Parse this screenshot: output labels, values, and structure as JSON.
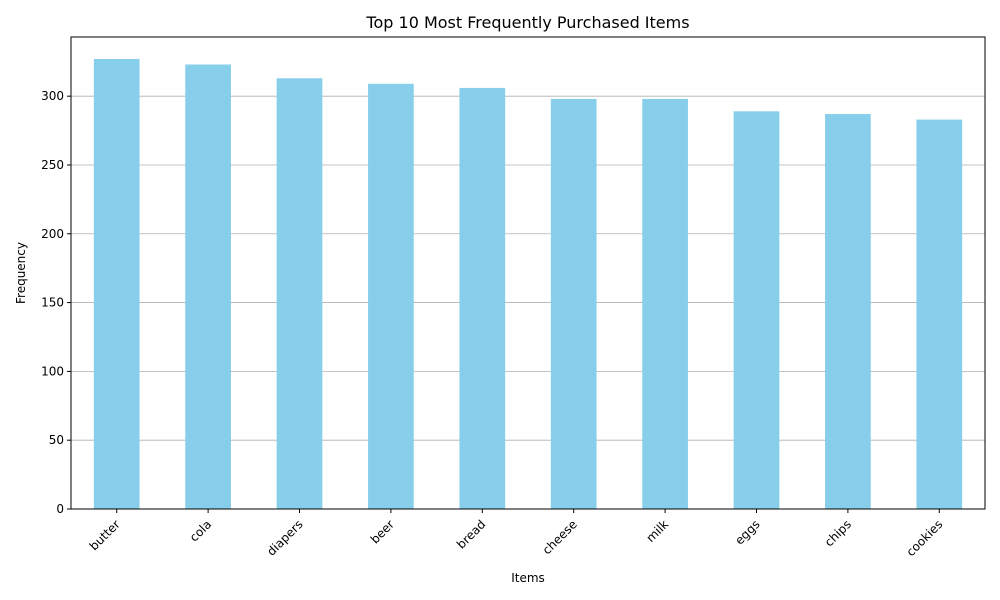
{
  "chart_data": {
    "type": "bar",
    "title": "Top 10 Most Frequently Purchased Items",
    "xlabel": "Items",
    "ylabel": "Frequency",
    "categories": [
      "butter",
      "cola",
      "diapers",
      "beer",
      "bread",
      "cheese",
      "milk",
      "eggs",
      "chips",
      "cookies"
    ],
    "values": [
      327,
      323,
      313,
      309,
      306,
      298,
      298,
      289,
      287,
      283
    ],
    "ylim": [
      0,
      343
    ],
    "yticks": [
      0,
      50,
      100,
      150,
      200,
      250,
      300
    ],
    "grid": "y-axis",
    "x_tick_rotation_deg": 45,
    "bar_color": "#87ceeb",
    "grid_color": "#b0b0b0"
  }
}
